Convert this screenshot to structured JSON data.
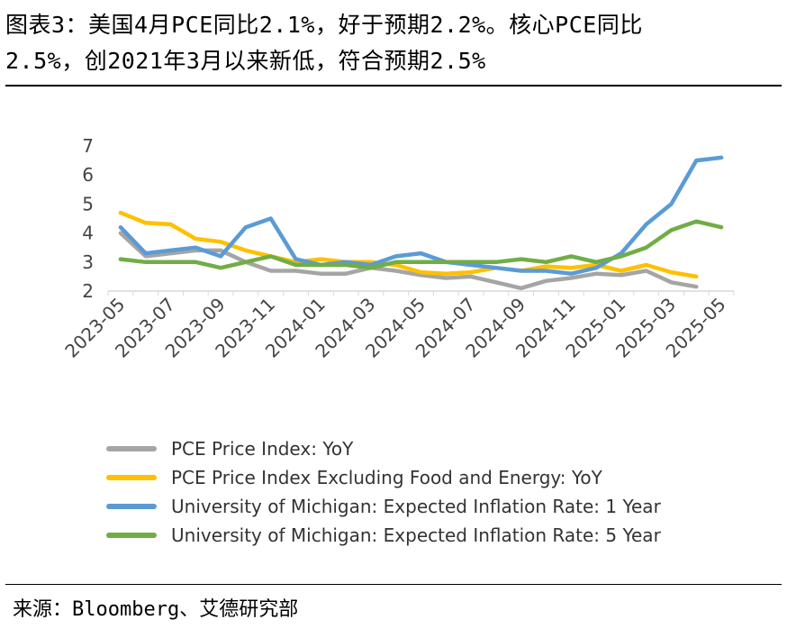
{
  "title": {
    "line1": "图表3：美国4月PCE同比2.1%，好于预期2.2%。核心PCE同比",
    "line2": "2.5%，创2021年3月以来新低，符合预期2.5%"
  },
  "source": "来源：Bloomberg、艾德研究部",
  "chart_data": {
    "type": "line",
    "x": [
      "2023-05",
      "2023-06",
      "2023-07",
      "2023-08",
      "2023-09",
      "2023-10",
      "2023-11",
      "2023-12",
      "2024-01",
      "2024-02",
      "2024-03",
      "2024-04",
      "2024-05",
      "2024-06",
      "2024-07",
      "2024-08",
      "2024-09",
      "2024-10",
      "2024-11",
      "2024-12",
      "2025-01",
      "2025-02",
      "2025-03",
      "2025-04",
      "2025-05"
    ],
    "x_tick_labels": [
      "2023-05",
      "2023-07",
      "2023-09",
      "2023-11",
      "2024-01",
      "2024-03",
      "2024-05",
      "2024-07",
      "2024-09",
      "2024-11",
      "2025-01",
      "2025-03",
      "2025-05"
    ],
    "ylim": [
      2,
      7
    ],
    "y_ticks": [
      2,
      3,
      4,
      5,
      6,
      7
    ],
    "grid": false,
    "legend_position": "bottom",
    "series": [
      {
        "name": "PCE Price Index: YoY",
        "color": "#a5a5a5",
        "values": [
          4.0,
          3.2,
          3.3,
          3.4,
          3.4,
          3.0,
          2.7,
          2.7,
          2.6,
          2.6,
          2.8,
          2.7,
          2.55,
          2.45,
          2.5,
          2.3,
          2.1,
          2.35,
          2.45,
          2.6,
          2.55,
          2.7,
          2.3,
          2.15,
          null
        ]
      },
      {
        "name": "PCE Price Index Excluding Food and Energy: YoY",
        "color": "#ffc000",
        "values": [
          4.7,
          4.35,
          4.3,
          3.8,
          3.7,
          3.4,
          3.2,
          3.0,
          3.1,
          3.0,
          3.0,
          2.9,
          2.65,
          2.6,
          2.65,
          2.8,
          2.7,
          2.85,
          2.8,
          2.9,
          2.7,
          2.9,
          2.65,
          2.5,
          null
        ]
      },
      {
        "name": "University of Michigan: Expected Inflation Rate: 1 Year",
        "color": "#5b9bd5",
        "values": [
          4.2,
          3.3,
          3.4,
          3.5,
          3.2,
          4.2,
          4.5,
          3.1,
          2.9,
          3.0,
          2.9,
          3.2,
          3.3,
          3.0,
          2.9,
          2.8,
          2.7,
          2.7,
          2.6,
          2.8,
          3.3,
          4.3,
          5.0,
          6.5,
          6.6
        ]
      },
      {
        "name": "University of Michigan: Expected Inflation Rate: 5 Year",
        "color": "#70ad47",
        "values": [
          3.1,
          3.0,
          3.0,
          3.0,
          2.8,
          3.0,
          3.2,
          2.9,
          2.9,
          2.9,
          2.8,
          3.0,
          3.0,
          3.0,
          3.0,
          3.0,
          3.1,
          3.0,
          3.2,
          3.0,
          3.2,
          3.5,
          4.1,
          4.4,
          4.2
        ]
      }
    ]
  }
}
